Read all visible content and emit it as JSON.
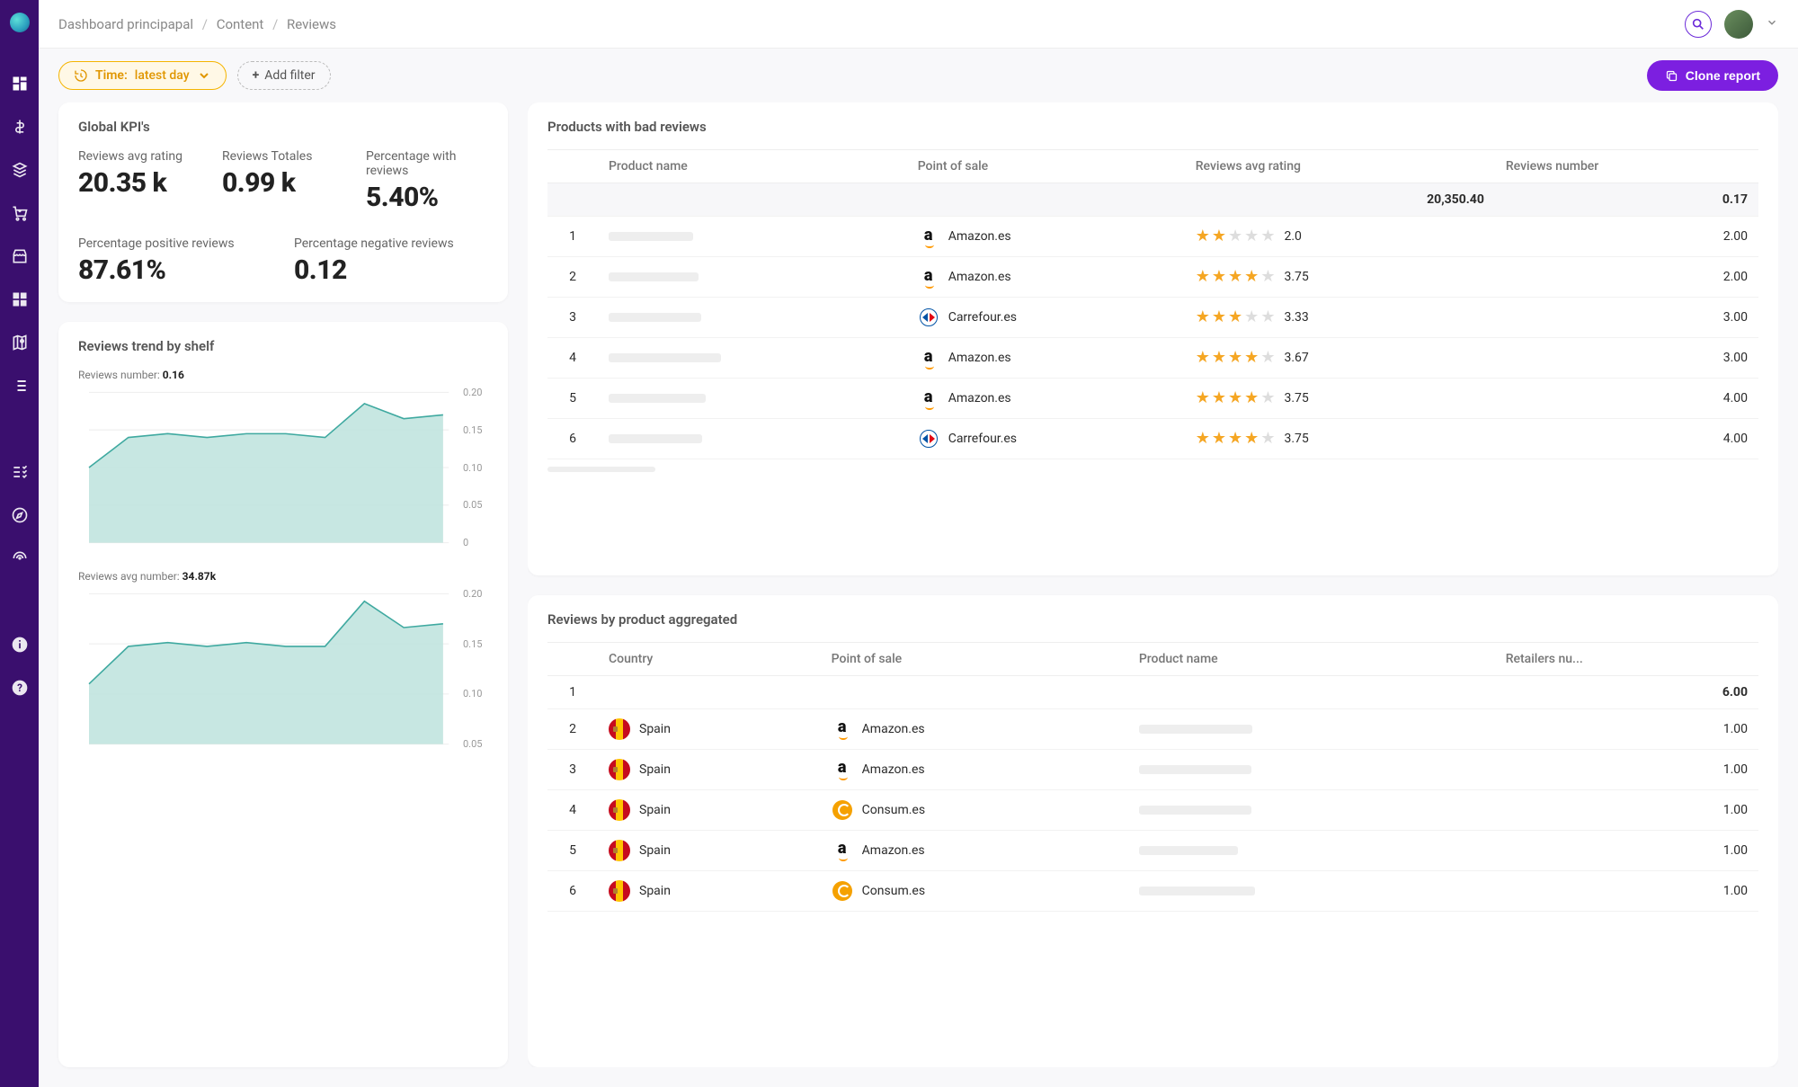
{
  "breadcrumb": [
    "Dashboard principapal",
    "Content",
    "Reviews"
  ],
  "filters": {
    "time_label": "Time:",
    "time_value": "latest day",
    "add_filter_label": "Add filter"
  },
  "clone_button": "Clone report",
  "kpi_card": {
    "title": "Global KPI's",
    "items": [
      {
        "label": "Reviews avg rating",
        "value": "20.35 k"
      },
      {
        "label": "Reviews Totales",
        "value": "0.99 k"
      },
      {
        "label": "Percentage with reviews",
        "value": "5.40%"
      },
      {
        "label": "Percentage positive reviews",
        "value": "87.61%"
      },
      {
        "label": "Percentage negative reviews",
        "value": "0.12"
      }
    ]
  },
  "trend_card": {
    "title": "Reviews trend by shelf",
    "charts": [
      {
        "type": "area",
        "prefix": "Reviews number: ",
        "stat": "0.16",
        "ylim": [
          0,
          0.2
        ],
        "ytick_step": 0.05,
        "ytick_labels": [
          "0.20",
          "0.15",
          "0.10",
          "0.05",
          "0"
        ],
        "stroke_color": "#3fa9a0",
        "fill_color": "#bde3dd",
        "grid_color": "#eeeeee",
        "points": [
          0.1,
          0.14,
          0.145,
          0.14,
          0.145,
          0.145,
          0.14,
          0.185,
          0.165,
          0.17
        ]
      },
      {
        "type": "area",
        "prefix": "Reviews avg number: ",
        "stat": "34.87k",
        "ylim": [
          0,
          0.2
        ],
        "ytick_step": 0.05,
        "ytick_labels": [
          "0.20",
          "0.15",
          "0.10",
          "0.05"
        ],
        "stroke_color": "#3fa9a0",
        "fill_color": "#bde3dd",
        "grid_color": "#eeeeee",
        "points": [
          0.08,
          0.13,
          0.135,
          0.13,
          0.135,
          0.13,
          0.13,
          0.19,
          0.155,
          0.16
        ]
      }
    ]
  },
  "bad_reviews": {
    "title": "Products with bad reviews",
    "columns": [
      "",
      "Product name",
      "Point of sale",
      "Reviews avg rating",
      "Reviews number"
    ],
    "aggregate": {
      "rating": "20,350.40",
      "number": "0.17"
    },
    "rows": [
      {
        "n": "1",
        "pos": "Amazon.es",
        "pos_brand": "amazon",
        "rating": 2.0,
        "rating_text": "2.0",
        "reviews": "2.00"
      },
      {
        "n": "2",
        "pos": "Amazon.es",
        "pos_brand": "amazon",
        "rating": 3.75,
        "rating_text": "3.75",
        "reviews": "2.00"
      },
      {
        "n": "3",
        "pos": "Carrefour.es",
        "pos_brand": "carrefour",
        "rating": 3.33,
        "rating_text": "3.33",
        "reviews": "3.00"
      },
      {
        "n": "4",
        "pos": "Amazon.es",
        "pos_brand": "amazon",
        "rating": 3.67,
        "rating_text": "3.67",
        "reviews": "3.00"
      },
      {
        "n": "5",
        "pos": "Amazon.es",
        "pos_brand": "amazon",
        "rating": 3.75,
        "rating_text": "3.75",
        "reviews": "4.00"
      },
      {
        "n": "6",
        "pos": "Carrefour.es",
        "pos_brand": "carrefour",
        "rating": 3.75,
        "rating_text": "3.75",
        "reviews": "4.00"
      }
    ]
  },
  "aggregated": {
    "title": "Reviews by product aggregated",
    "columns": [
      "",
      "Country",
      "Point of sale",
      "Product name",
      "Retailers nu..."
    ],
    "aggregate": {
      "n": "1",
      "retailers": "6.00"
    },
    "rows": [
      {
        "n": "2",
        "country": "Spain",
        "pos": "Amazon.es",
        "pos_brand": "amazon",
        "retailers": "1.00"
      },
      {
        "n": "3",
        "country": "Spain",
        "pos": "Amazon.es",
        "pos_brand": "amazon",
        "retailers": "1.00"
      },
      {
        "n": "4",
        "country": "Spain",
        "pos": "Consum.es",
        "pos_brand": "consum",
        "retailers": "1.00"
      },
      {
        "n": "5",
        "country": "Spain",
        "pos": "Amazon.es",
        "pos_brand": "amazon",
        "retailers": "1.00"
      },
      {
        "n": "6",
        "country": "Spain",
        "pos": "Consum.es",
        "pos_brand": "consum",
        "retailers": "1.00"
      }
    ]
  },
  "star_colors": {
    "filled": "#f5a623",
    "empty": "#dddddd"
  }
}
